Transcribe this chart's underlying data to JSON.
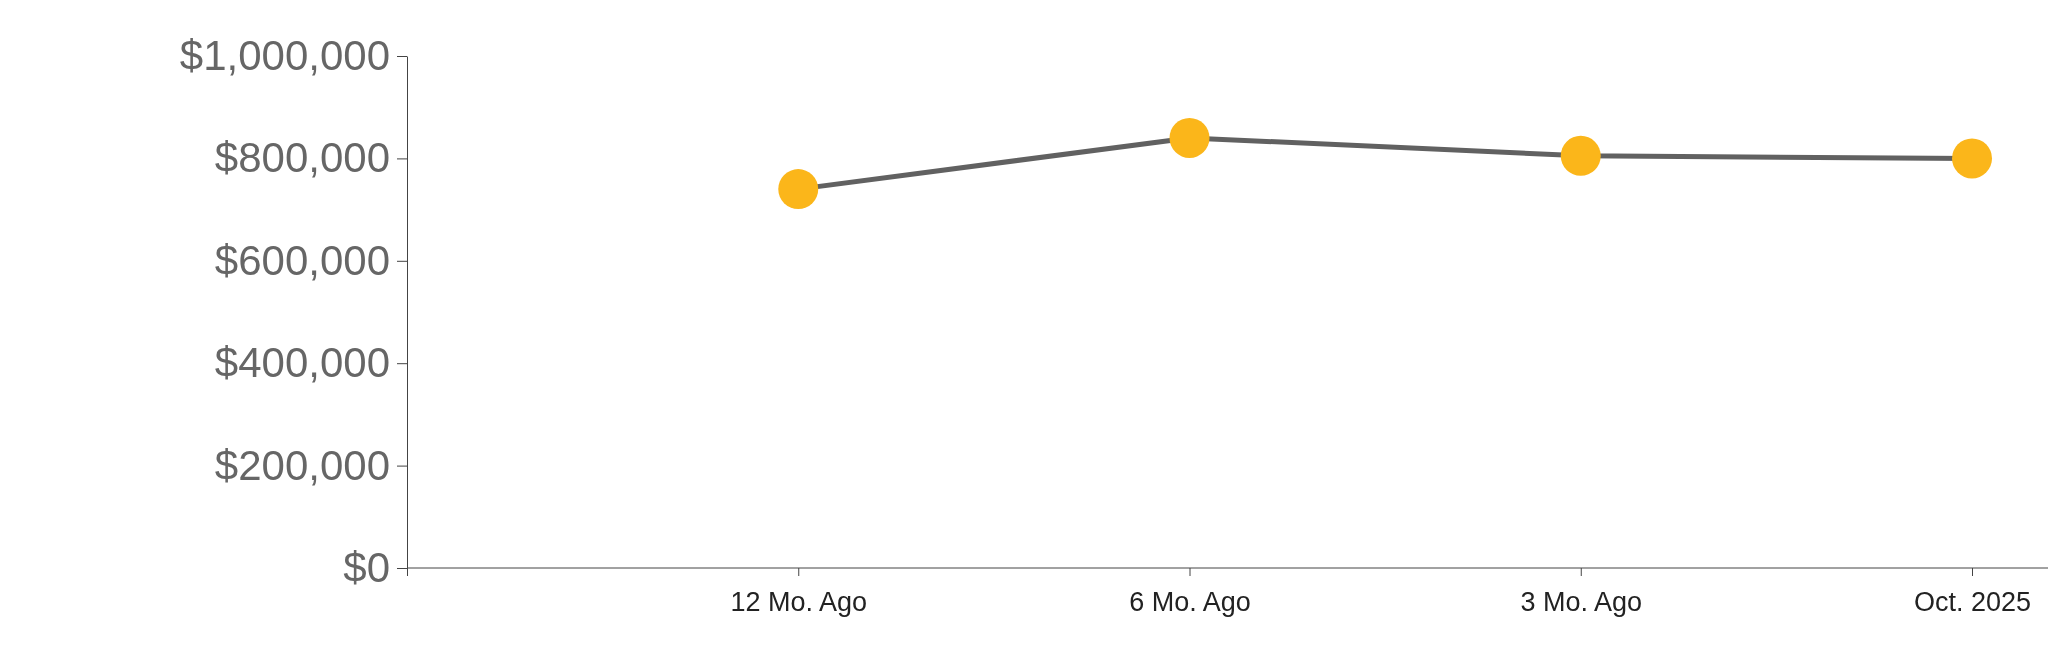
{
  "chart_data": {
    "type": "line",
    "categories": [
      null,
      "12 Mo. Ago",
      "6 Mo. Ago",
      "3 Mo. Ago",
      "Oct. 2025"
    ],
    "series": [
      {
        "color": "#616161",
        "colors": [
          null,
          "#fbb61a",
          "#fbb61a",
          "#fbb61a",
          "#fbb61a"
        ],
        "values": [
          null,
          740000,
          840000,
          805000,
          800000
        ]
      }
    ],
    "marker": "circle",
    "ylim": [
      0,
      1000000
    ],
    "yticks": [
      {
        "value": 0,
        "label": "$0"
      },
      {
        "value": 200000,
        "label": "$200,000"
      },
      {
        "value": 400000,
        "label": "$400,000"
      },
      {
        "value": 600000,
        "label": "$600,000"
      },
      {
        "value": 800000,
        "label": "$800,000"
      },
      {
        "value": 1000000,
        "label": "$1,000,000"
      }
    ]
  }
}
